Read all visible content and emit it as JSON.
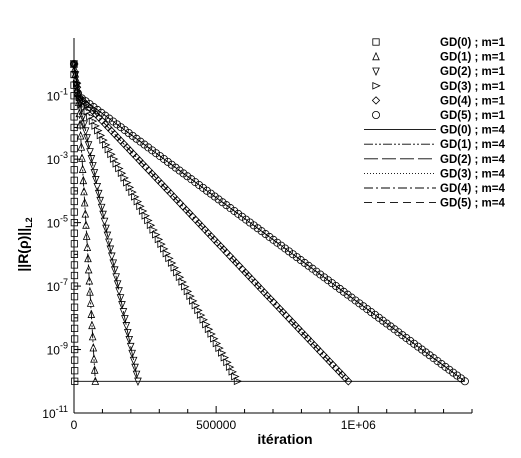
{
  "chart_data": {
    "type": "line",
    "xlabel": "itération",
    "ylabel": "||R(ρ)||",
    "ylabel_subscript": "L2",
    "xlim": [
      0,
      1400000
    ],
    "ylim_log10": [
      -11,
      0
    ],
    "yscale": "log",
    "grid": false,
    "legend_position": "top-right",
    "x_ticks": [
      {
        "value": 0,
        "label": "0"
      },
      {
        "value": 500000,
        "label": "500000"
      },
      {
        "value": 1000000,
        "label": "1E+06"
      }
    ],
    "y_ticks": [
      {
        "exp": -1,
        "label": "10",
        "sup": "-1"
      },
      {
        "exp": -3,
        "label": "10",
        "sup": "-3"
      },
      {
        "exp": -5,
        "label": "10",
        "sup": "-5"
      },
      {
        "exp": -7,
        "label": "10",
        "sup": "-7"
      },
      {
        "exp": -9,
        "label": "10",
        "sup": "-9"
      },
      {
        "exp": -11,
        "label": "10",
        "sup": "-11"
      }
    ],
    "series_m1": [
      {
        "name": "GD(0) ; m=1",
        "marker": "square",
        "x_end": 2500,
        "n_markers": 30
      },
      {
        "name": "GD(1) ; m=1",
        "marker": "triangle-up",
        "x_end": 75000,
        "n_markers": 32
      },
      {
        "name": "GD(2) ; m=1",
        "marker": "triangle-down",
        "x_end": 225000,
        "n_markers": 44
      },
      {
        "name": "GD(3) ; m=1",
        "marker": "triangle-right",
        "x_end": 575000,
        "n_markers": 62
      },
      {
        "name": "GD(4) ; m=1",
        "marker": "diamond",
        "x_end": 965000,
        "n_markers": 88
      },
      {
        "name": "GD(5) ; m=1",
        "marker": "circle",
        "x_end": 1375000,
        "n_markers": 100
      }
    ],
    "series_m4": [
      {
        "name": "GD(0) ; m=4",
        "dash": "",
        "x_end": 1375000
      },
      {
        "name": "GD(1) ; m=4",
        "dash": "9,2,2,2,2,2",
        "x_end": 75000
      },
      {
        "name": "GD(2) ; m=4",
        "dash": "14,4",
        "x_end": 225000
      },
      {
        "name": "GD(3) ; m=4",
        "dash": "1,2",
        "x_end": 575000
      },
      {
        "name": "GD(4) ; m=4",
        "dash": "9,3,2,3",
        "x_end": 965000
      },
      {
        "name": "GD(5) ; m=4",
        "dash": "8,5",
        "x_end": 1375000
      }
    ],
    "start_value_exp": 0,
    "converged_exp": -10,
    "init_drop_exp": -1,
    "init_drop_x": 15000
  }
}
